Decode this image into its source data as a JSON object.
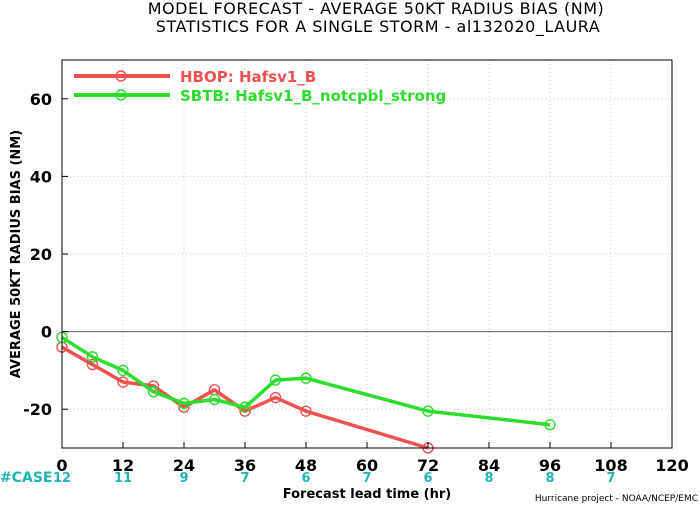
{
  "title_line1": "MODEL FORECAST - AVERAGE 50KT RADIUS BIAS (NM)",
  "title_line2": "STATISTICS FOR A SINGLE STORM - al132020_LAURA",
  "case_label": "#CASE",
  "credit": "Hurricane project - NOAA/NCEP/EMC",
  "chart_data": {
    "type": "line",
    "xlabel": "Forecast lead time (hr)",
    "ylabel": "AVERAGE 50KT RADIUS BIAS (NM)",
    "xlim": [
      0,
      120
    ],
    "ylim": [
      -30,
      70
    ],
    "xticks": [
      0,
      12,
      24,
      36,
      48,
      60,
      72,
      84,
      96,
      108,
      120
    ],
    "yticks": [
      -20,
      0,
      20,
      40,
      60
    ],
    "grid": true,
    "legend_position": "top-left",
    "case_counts": {
      "x": [
        0,
        12,
        24,
        36,
        48,
        60,
        72,
        84,
        96,
        108
      ],
      "labels": [
        "12",
        "11",
        "9",
        "7",
        "6",
        "7",
        "6",
        "8",
        "8",
        "7"
      ]
    },
    "series": [
      {
        "name": "HBOP: Hafsv1_B",
        "color": "#f05050",
        "x": [
          0,
          6,
          12,
          18,
          24,
          30,
          36,
          42,
          48,
          72
        ],
        "y": [
          -4,
          -8.5,
          -13,
          -14,
          -19.5,
          -15,
          -20.5,
          -17,
          -20.5,
          -30
        ]
      },
      {
        "name": "SBTB: Hafsv1_B_notcpbl_strong",
        "color": "#2ddc2d",
        "x": [
          0,
          6,
          12,
          18,
          24,
          30,
          36,
          42,
          48,
          72,
          96
        ],
        "y": [
          -1.5,
          -6.5,
          -10,
          -15.5,
          -18.5,
          -17.5,
          -19.5,
          -12.5,
          -12,
          -20.5,
          -24
        ]
      }
    ]
  }
}
